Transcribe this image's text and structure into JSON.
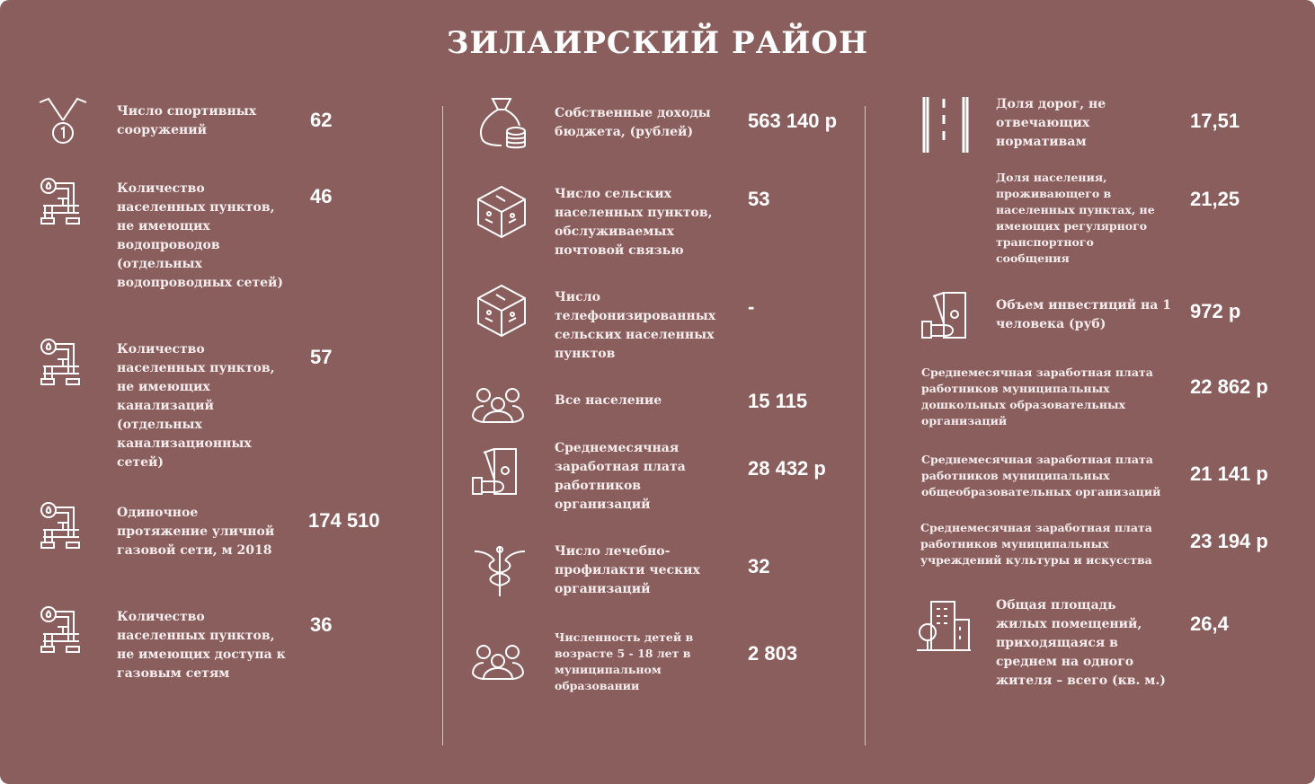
{
  "title": "ЗИЛАИРСКИЙ  РАЙОН",
  "columns": [
    {
      "items": [
        {
          "icon": "medal-icon",
          "label": "Число спортивных сооружений",
          "value": "62"
        },
        {
          "icon": "pipes-icon",
          "label": "Количество населенных пунктов, не имеющих водопроводов (отдельных водопроводных сетей)",
          "value": "46"
        },
        {
          "icon": "pipes-icon",
          "label": "Количество населенных пунктов, не имеющих канализаций (отдельных канализационных сетей)",
          "value": "57"
        },
        {
          "icon": "pipes-icon",
          "label": "Одиночное протяжение уличной газовой сети, м 2018",
          "value": "174 510"
        },
        {
          "icon": "pipes-icon",
          "label": "Количество населенных пунктов, не имеющих доступа к газовым сетям",
          "value": "36"
        }
      ]
    },
    {
      "items": [
        {
          "icon": "money-bag-icon",
          "label": "Собственные доходы бюджета, (рублей)",
          "value": "563 140 р"
        },
        {
          "icon": "circuit-cube-icon",
          "label": "Число сельских населенных пунктов, обслуживаемых почтовой связью",
          "value": "53"
        },
        {
          "icon": "circuit-cube-icon",
          "label": "Число телефонизированных сельских населенных пунктов",
          "value": "-"
        },
        {
          "icon": "people-group-icon",
          "label": "Все население",
          "value": "15 115"
        },
        {
          "icon": "hand-money-icon",
          "label": "Среднемесячная заработная плата работников организаций",
          "value": "28 432 р"
        },
        {
          "icon": "caduceus-icon",
          "label": "Число лечебно-профилакти ческих организаций",
          "value": "32"
        },
        {
          "icon": "people-group-icon",
          "label": "Численность детей в возрасте 5 - 18 лет в муниципальном образовании",
          "value": "2 803"
        }
      ]
    },
    {
      "items": [
        {
          "icon": "road-icon",
          "label": "Доля дорог, не отвечающих нормативам",
          "value": "17,51"
        },
        {
          "label": "Доля населения, проживающего в населенных пунктах, не имеющих регулярного транспортного сообщения",
          "value": "21,25"
        },
        {
          "icon": "hand-money-icon",
          "label": "Объем инвестиций на 1 человека (руб)",
          "value": "972 р"
        },
        {
          "label": "Среднемесячная заработная плата работников муниципальных дошкольных образовательных организаций",
          "value": "22 862 р"
        },
        {
          "label": "Среднемесячная заработная плата работников муниципальных общеобразовательных организаций",
          "value": "21 141 р"
        },
        {
          "label": "Среднемесячная заработная плата работников муниципальных учреждений культуры и искусства",
          "value": "23 194 р"
        },
        {
          "icon": "building-icon",
          "label": "Общая площадь жилых помещений, приходящаяся в среднем на одного жителя – всего (кв. м.)",
          "value": "26,4"
        }
      ]
    }
  ],
  "colors": {
    "background": "#8b5e5e",
    "text": "#ffffff"
  }
}
